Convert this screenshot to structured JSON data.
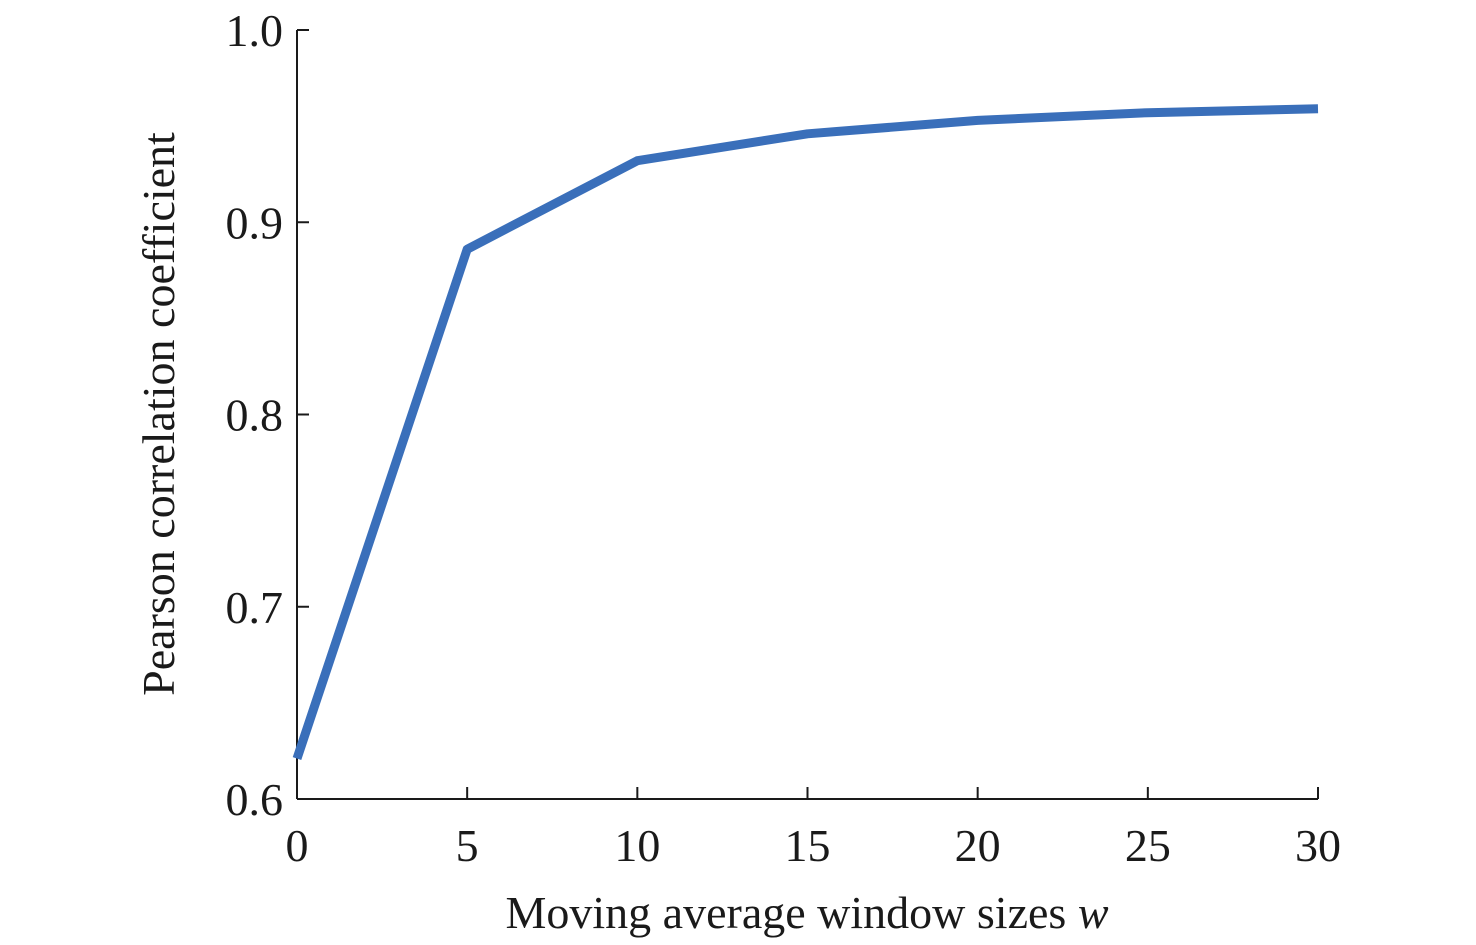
{
  "chart_data": {
    "type": "line",
    "xlabel": "Moving average window sizes",
    "xlabel_var": "w",
    "ylabel": "Pearson correlation coefficient",
    "xlim": [
      0,
      30
    ],
    "ylim": [
      0.6,
      1.0
    ],
    "x_ticks": [
      0,
      5,
      10,
      15,
      20,
      25,
      30
    ],
    "x_tick_labels": [
      "0",
      "5",
      "10",
      "15",
      "20",
      "25",
      "30"
    ],
    "y_ticks": [
      0.6,
      0.7,
      0.8,
      0.9,
      1.0
    ],
    "y_tick_labels": [
      "0.6",
      "0.7",
      "0.8",
      "0.9",
      "1.0"
    ],
    "grid": false,
    "series": [
      {
        "color": "#3a6fba",
        "x": [
          0,
          5,
          10,
          15,
          20,
          25,
          30
        ],
        "values": [
          0.621,
          0.886,
          0.932,
          0.946,
          0.953,
          0.957,
          0.959
        ]
      }
    ]
  }
}
